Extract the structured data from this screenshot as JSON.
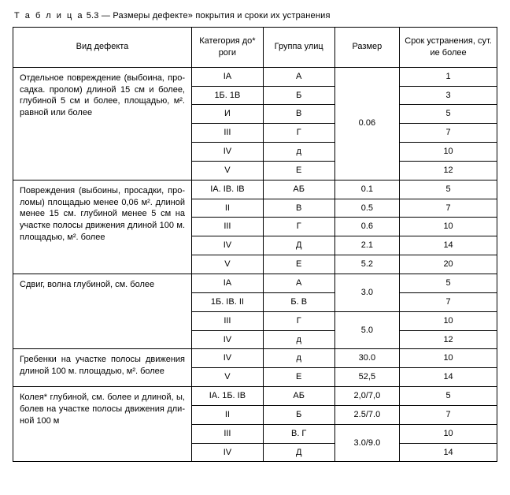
{
  "caption_prefix": "Т а б л и ц а",
  "caption_rest": " 5.3 — Размеры дефекте» покрытия и сроки их устранения",
  "headers": {
    "defect": "Вид дефекта",
    "category": "Категория до* роги",
    "group": "Группа улиц",
    "size": "Размер",
    "term": "Срок устранения, сут. ие более"
  },
  "defects": {
    "d1": "Отдельное повреждение (выбоина, про­садка. пролом) длиной 15 см и более, глубиной 5 см и более, площадью, м². равной или более",
    "d2": "Повреждения (выбоины, просадки, про­ломы) площадью менее 0,06 м². длиной менее 15 см. глубиной менее 5 см на участке полосы движения длиной 100 м. площадью, м². более",
    "d3": "Сдвиг, волна глубиной, см. более",
    "d4": "Гребенки на участке полосы движения длиной 100 м. площадью, м². более",
    "d5": "Колея* глубиной, см. более и длиной, ы, болев на участке полосы движения дли­ной 100 м"
  },
  "rows": {
    "r1": {
      "cat": "IА",
      "grp": "А",
      "term": "1"
    },
    "r2": {
      "cat": "1Б. 1В",
      "grp": "Б",
      "term": "3"
    },
    "r3": {
      "cat": "И",
      "grp": "В",
      "term": "5"
    },
    "r4": {
      "cat": "III",
      "grp": "Г",
      "term": "7"
    },
    "r5": {
      "cat": "IV",
      "grp": "д",
      "term": "10"
    },
    "r6": {
      "cat": "V",
      "grp": "Е",
      "term": "12"
    },
    "r7": {
      "cat": "IА. IВ. IВ",
      "grp": "АБ",
      "size": "0.1",
      "term": "5"
    },
    "r8": {
      "cat": "II",
      "grp": "В",
      "size": "0.5",
      "term": "7"
    },
    "r9": {
      "cat": "III",
      "grp": "Г",
      "size": "0.6",
      "term": "10"
    },
    "r10": {
      "cat": "IV",
      "grp": "Д",
      "size": "2.1",
      "term": "14"
    },
    "r11": {
      "cat": "V",
      "grp": "Е",
      "size": "5.2",
      "term": "20"
    },
    "r12": {
      "cat": "IА",
      "grp": "А",
      "term": "5"
    },
    "r13": {
      "cat": "1Б. IВ. II",
      "grp": "Б. В",
      "term": "7"
    },
    "r14": {
      "cat": "III",
      "grp": "Г",
      "term": "10"
    },
    "r15": {
      "cat": "IV",
      "grp": "д",
      "term": "12"
    },
    "r16": {
      "cat": "IV",
      "grp": "д",
      "size": "30.0",
      "term": "10"
    },
    "r17": {
      "cat": "V",
      "grp": "Е",
      "size": "52,5",
      "term": "14"
    },
    "r18": {
      "cat": "IА. 1Б. IВ",
      "grp": "АБ",
      "size": "2,0/7,0",
      "term": "5"
    },
    "r19": {
      "cat": "II",
      "grp": "Б",
      "size": "2.5/7.0",
      "term": "7"
    },
    "r20": {
      "cat": "III",
      "grp": "В. Г",
      "term": "10"
    },
    "r21": {
      "cat": "IV",
      "grp": "Д",
      "term": "14"
    }
  },
  "merged_sizes": {
    "s1": "0.06",
    "s3a": "3.0",
    "s3b": "5.0",
    "s5": "3.0/9.0"
  }
}
